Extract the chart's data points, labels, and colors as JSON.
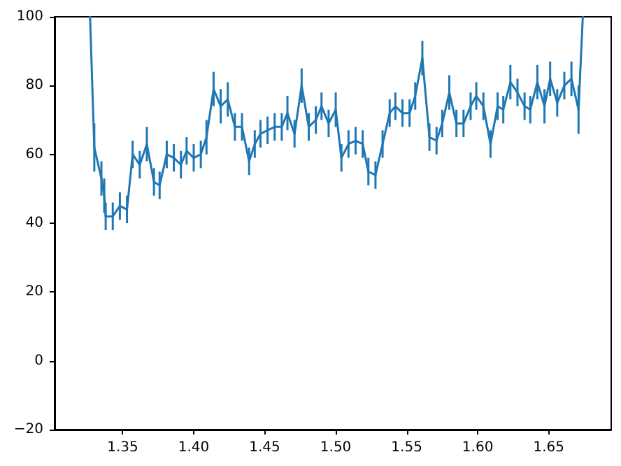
{
  "chart_data": {
    "type": "line",
    "xlim": [
      1.302,
      1.694
    ],
    "ylim": [
      -20,
      100
    ],
    "xticks": [
      {
        "value": 1.35,
        "label": "1.35"
      },
      {
        "value": 1.4,
        "label": "1.40"
      },
      {
        "value": 1.45,
        "label": "1.45"
      },
      {
        "value": 1.5,
        "label": "1.50"
      },
      {
        "value": 1.55,
        "label": "1.55"
      },
      {
        "value": 1.6,
        "label": "1.60"
      },
      {
        "value": 1.65,
        "label": "1.65"
      }
    ],
    "yticks": [
      {
        "value": -20,
        "label": "−20"
      },
      0,
      20,
      40,
      60,
      80,
      100
    ],
    "x": [
      1.327,
      1.33,
      1.335,
      1.337,
      1.338,
      1.343,
      1.348,
      1.353,
      1.357,
      1.362,
      1.367,
      1.372,
      1.376,
      1.381,
      1.386,
      1.391,
      1.395,
      1.4,
      1.405,
      1.409,
      1.414,
      1.419,
      1.424,
      1.429,
      1.434,
      1.439,
      1.443,
      1.447,
      1.452,
      1.457,
      1.462,
      1.466,
      1.471,
      1.476,
      1.481,
      1.486,
      1.49,
      1.495,
      1.5,
      1.504,
      1.509,
      1.514,
      1.519,
      1.523,
      1.528,
      1.533,
      1.538,
      1.542,
      1.547,
      1.552,
      1.556,
      1.561,
      1.566,
      1.571,
      1.575,
      1.58,
      1.585,
      1.59,
      1.595,
      1.599,
      1.604,
      1.609,
      1.614,
      1.618,
      1.623,
      1.628,
      1.633,
      1.637,
      1.642,
      1.647,
      1.651,
      1.656,
      1.661,
      1.666,
      1.671,
      1.674
    ],
    "series": [
      {
        "color": "#1f77b4",
        "values": [
          100,
          62,
          53,
          48,
          42,
          42,
          45,
          44,
          60,
          57,
          63,
          52,
          51,
          60,
          59,
          57,
          61,
          59,
          60,
          65,
          79,
          74,
          76,
          68,
          68,
          58,
          63,
          66,
          67,
          68,
          68,
          72,
          66,
          80,
          68,
          70,
          74,
          69,
          73,
          59,
          63,
          64,
          63,
          55,
          54,
          63,
          72,
          74,
          72,
          72,
          77,
          88,
          65,
          64,
          69,
          78,
          69,
          69,
          74,
          77,
          74,
          63,
          74,
          73,
          81,
          78,
          74,
          73,
          81,
          74,
          82,
          75,
          80,
          82,
          73,
          100
        ],
        "errors": [
          null,
          7,
          5,
          5,
          4,
          4,
          4,
          4,
          4,
          4,
          5,
          4,
          4,
          4,
          4,
          4,
          4,
          4,
          4,
          5,
          5,
          5,
          5,
          4,
          4,
          4,
          4,
          4,
          4,
          4,
          4,
          5,
          4,
          5,
          4,
          4,
          4,
          4,
          5,
          4,
          4,
          4,
          4,
          4,
          4,
          4,
          4,
          4,
          4,
          4,
          4,
          5,
          4,
          4,
          4,
          5,
          4,
          4,
          4,
          4,
          4,
          4,
          4,
          4,
          5,
          4,
          4,
          4,
          5,
          5,
          5,
          4,
          4,
          5,
          7,
          null
        ]
      }
    ]
  }
}
